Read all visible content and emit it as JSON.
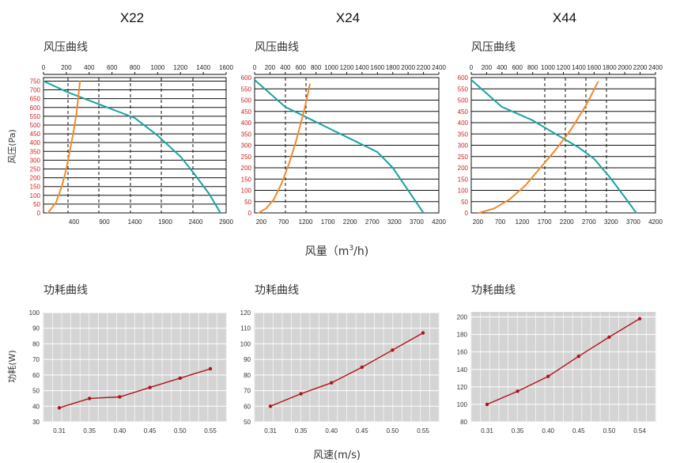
{
  "models": [
    "X22",
    "X24",
    "X44"
  ],
  "pressure_section_title": "风压曲线",
  "power_section_title": "功耗曲线",
  "pressure_ylabel": "风压(Pa)",
  "pressure_xlabel_prefix": "风量（m",
  "pressure_xlabel_sup": "3",
  "pressure_xlabel_suffix": "/h)",
  "power_ylabel": "功耗(W)",
  "power_xlabel": "风速(m/s)",
  "colors": {
    "fan_curve": "#1aa3a3",
    "system_curve": "#f08a2c",
    "power_line": "#b01218",
    "power_bg": "#d4d4d4",
    "pressure_tick_red": "#cc2222"
  },
  "chart_data": [
    {
      "type": "line",
      "model": "X22",
      "kind": "pressure",
      "top_axis_ticks": [
        "0",
        "200",
        "400",
        "600",
        "800",
        "1000",
        "1200",
        "1400",
        "1600"
      ],
      "top_axis_range": [
        0,
        1600
      ],
      "bottom_axis_ticks": [
        "400",
        "900",
        "1400",
        "1900",
        "2400",
        "2900"
      ],
      "bottom_axis_range": [
        -100,
        2900
      ],
      "y_ticks": [
        "0",
        "50",
        "100",
        "150",
        "200",
        "250",
        "300",
        "350",
        "400",
        "450",
        "500",
        "550",
        "600",
        "650",
        "700",
        "750"
      ],
      "ylim": [
        0,
        770
      ],
      "series": [
        {
          "color_key": "fan_curve",
          "x": [
            0,
            200,
            400,
            600,
            800,
            1000,
            1200,
            1300,
            1450,
            1550
          ],
          "y": [
            750,
            690,
            640,
            590,
            540,
            440,
            320,
            240,
            110,
            0
          ]
        },
        {
          "color_key": "system_curve",
          "x": [
            40,
            110,
            160,
            200,
            230,
            260,
            290,
            320
          ],
          "y": [
            0,
            60,
            150,
            250,
            350,
            450,
            570,
            750
          ]
        }
      ]
    },
    {
      "type": "line",
      "model": "X24",
      "kind": "pressure",
      "top_axis_ticks": [
        "0",
        "200",
        "400",
        "600",
        "800",
        "1000",
        "1200",
        "1400",
        "1600",
        "1800",
        "2000",
        "2200",
        "2400"
      ],
      "top_axis_range": [
        0,
        2400
      ],
      "bottom_axis_ticks": [
        "200",
        "700",
        "1200",
        "1700",
        "2200",
        "2700",
        "3200",
        "3700",
        "4200"
      ],
      "bottom_axis_range": [
        50,
        4200
      ],
      "y_ticks": [
        "0",
        "50",
        "100",
        "150",
        "200",
        "250",
        "300",
        "350",
        "400",
        "450",
        "500",
        "550",
        "600"
      ],
      "ylim": [
        0,
        600
      ],
      "series": [
        {
          "color_key": "fan_curve",
          "x": [
            0,
            200,
            400,
            700,
            1000,
            1300,
            1600,
            1800,
            2000,
            2200
          ],
          "y": [
            590,
            530,
            470,
            420,
            370,
            320,
            270,
            200,
            100,
            0
          ]
        },
        {
          "color_key": "system_curve",
          "x": [
            50,
            150,
            250,
            350,
            450,
            550,
            650,
            720
          ],
          "y": [
            0,
            20,
            60,
            130,
            220,
            330,
            460,
            570
          ]
        }
      ]
    },
    {
      "type": "line",
      "model": "X44",
      "kind": "pressure",
      "top_axis_ticks": [
        "0",
        "200",
        "400",
        "600",
        "800",
        "1000",
        "1200",
        "1400",
        "1600",
        "1800",
        "2000",
        "2200",
        "2400"
      ],
      "top_axis_range": [
        0,
        2400
      ],
      "bottom_axis_ticks": [
        "200",
        "700",
        "1200",
        "1700",
        "2200",
        "2700",
        "3200",
        "3700",
        "4200"
      ],
      "bottom_axis_range": [
        50,
        4200
      ],
      "y_ticks": [
        "0",
        "50",
        "100",
        "150",
        "200",
        "250",
        "300",
        "350",
        "400",
        "450",
        "500",
        "550",
        "600"
      ],
      "ylim": [
        0,
        600
      ],
      "series": [
        {
          "color_key": "fan_curve",
          "x": [
            0,
            200,
            400,
            800,
            1100,
            1400,
            1600,
            1800,
            2000,
            2150
          ],
          "y": [
            590,
            530,
            470,
            410,
            350,
            290,
            240,
            160,
            70,
            0
          ]
        },
        {
          "color_key": "system_curve",
          "x": [
            100,
            300,
            500,
            700,
            900,
            1100,
            1300,
            1500,
            1650
          ],
          "y": [
            0,
            20,
            60,
            120,
            200,
            280,
            370,
            480,
            580
          ]
        }
      ]
    },
    {
      "type": "line",
      "model": "X22",
      "kind": "power",
      "categories": [
        "0.31",
        "0.35",
        "0.40",
        "0.45",
        "0.50",
        "0.55"
      ],
      "values": [
        39,
        45,
        46,
        52,
        58,
        64
      ],
      "y_ticks": [
        "30",
        "40",
        "50",
        "60",
        "70",
        "80",
        "90",
        "100"
      ],
      "ylim": [
        30,
        100
      ]
    },
    {
      "type": "line",
      "model": "X24",
      "kind": "power",
      "categories": [
        "0.31",
        "0.35",
        "0.40",
        "0.45",
        "0.50",
        "0.55"
      ],
      "values": [
        60,
        68,
        75,
        85,
        96,
        107
      ],
      "y_ticks": [
        "50",
        "60",
        "70",
        "80",
        "90",
        "100",
        "110",
        "120"
      ],
      "ylim": [
        50,
        120
      ]
    },
    {
      "type": "line",
      "model": "X44",
      "kind": "power",
      "categories": [
        "0.31",
        "0.35",
        "0.40",
        "0.45",
        "0.50",
        "0.54"
      ],
      "values": [
        100,
        115,
        132,
        155,
        177,
        198
      ],
      "y_ticks": [
        "80",
        "100",
        "120",
        "140",
        "160",
        "180",
        "200"
      ],
      "ylim": [
        80,
        205
      ]
    }
  ]
}
